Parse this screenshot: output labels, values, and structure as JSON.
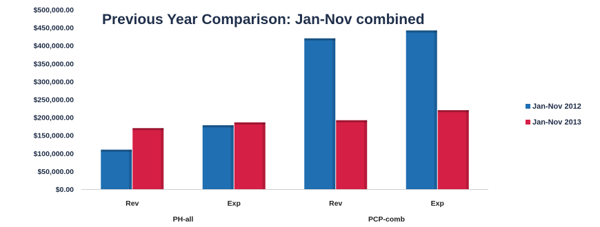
{
  "chart_data": {
    "type": "bar",
    "title": "Previous Year Comparison: Jan-Nov combined",
    "categories": [
      "Rev",
      "Exp",
      "Rev",
      "Exp"
    ],
    "groups": [
      {
        "label": "PH-all",
        "categories": [
          "Rev",
          "Exp"
        ]
      },
      {
        "label": "PCP-comb",
        "categories": [
          "Rev",
          "Exp"
        ]
      }
    ],
    "series": [
      {
        "name": "Jan-Nov 2012",
        "color": "#1f6fb2",
        "values": [
          110000,
          178000,
          420000,
          442000
        ]
      },
      {
        "name": "Jan-Nov 2013",
        "color": "#d61f45",
        "values": [
          170000,
          186000,
          192000,
          220000
        ]
      }
    ],
    "ylim": [
      0,
      500000
    ],
    "yticks": [
      "$0.00",
      "$50,000.00",
      "$100,000.00",
      "$150,000.00",
      "$200,000.00",
      "$250,000.00",
      "$300,000.00",
      "$350,000.00",
      "$400,000.00",
      "$450,000.00",
      "$500,000.00"
    ],
    "xlabel": "",
    "ylabel": "",
    "grid": false,
    "legend_position": "right"
  }
}
